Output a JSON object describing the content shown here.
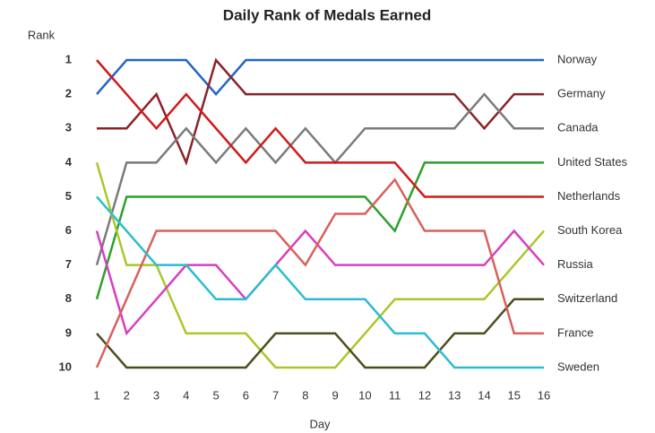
{
  "chart_data": {
    "type": "line",
    "title": "Daily Rank of Medals Earned",
    "x_label": "Day",
    "y_label": "Rank",
    "x": [
      1,
      2,
      3,
      4,
      5,
      6,
      7,
      8,
      9,
      10,
      11,
      12,
      13,
      14,
      15,
      16
    ],
    "xlim": [
      1,
      16
    ],
    "xticks": [
      1,
      2,
      3,
      4,
      5,
      6,
      7,
      8,
      9,
      10,
      11,
      12,
      13,
      14,
      15,
      16
    ],
    "ylim": [
      1,
      10
    ],
    "yticks": [
      1,
      2,
      3,
      4,
      5,
      6,
      7,
      8,
      9,
      10
    ],
    "y_inverted": true,
    "grid": false,
    "series": [
      {
        "name": "Norway",
        "color": "#2566c4",
        "values": [
          2,
          1,
          1,
          1,
          2,
          1,
          1,
          1,
          1,
          1,
          1,
          1,
          1,
          1,
          1,
          1
        ]
      },
      {
        "name": "Germany",
        "color": "#8b2328",
        "values": [
          3,
          3,
          2,
          4,
          1,
          2,
          2,
          2,
          2,
          2,
          2,
          2,
          2,
          3,
          2,
          2
        ]
      },
      {
        "name": "Canada",
        "color": "#7a7a7a",
        "values": [
          7,
          4,
          4,
          3,
          4,
          3,
          4,
          3,
          4,
          3,
          3,
          3,
          3,
          2,
          3,
          3
        ]
      },
      {
        "name": "United States",
        "color": "#2ca02c",
        "values": [
          8,
          5,
          5,
          5,
          5,
          5,
          5,
          5,
          5,
          5,
          6,
          4,
          4,
          4,
          4,
          4
        ]
      },
      {
        "name": "Netherlands",
        "color": "#d01a1a",
        "values": [
          1,
          2,
          3,
          2,
          3,
          4,
          3,
          4,
          4,
          4,
          4,
          5,
          5,
          5,
          5,
          5
        ]
      },
      {
        "name": "South Korea",
        "color": "#a8c82a",
        "values": [
          4,
          7,
          7,
          9,
          9,
          9,
          10,
          10,
          10,
          9,
          8,
          8,
          8,
          8,
          7,
          6
        ]
      },
      {
        "name": "Russia",
        "color": "#d63fc0",
        "values": [
          6,
          9,
          8,
          7,
          7,
          8,
          7,
          6,
          7,
          7,
          7,
          7,
          7,
          7,
          6,
          7
        ]
      },
      {
        "name": "Switzerland",
        "color": "#4d4d1f",
        "values": [
          9,
          10,
          10,
          10,
          10,
          10,
          9,
          9,
          9,
          10,
          10,
          10,
          9,
          9,
          8,
          8
        ]
      },
      {
        "name": "France",
        "color": "#d9605c",
        "values": [
          10,
          8,
          6,
          6,
          6,
          6,
          6,
          7,
          5.5,
          5.5,
          4.5,
          6,
          6,
          6,
          9,
          9
        ]
      },
      {
        "name": "Sweden",
        "color": "#2bbcd0",
        "values": [
          5,
          6,
          7,
          7,
          8,
          8,
          7,
          8,
          8,
          8,
          9,
          9,
          10,
          10,
          10,
          10
        ]
      }
    ]
  }
}
